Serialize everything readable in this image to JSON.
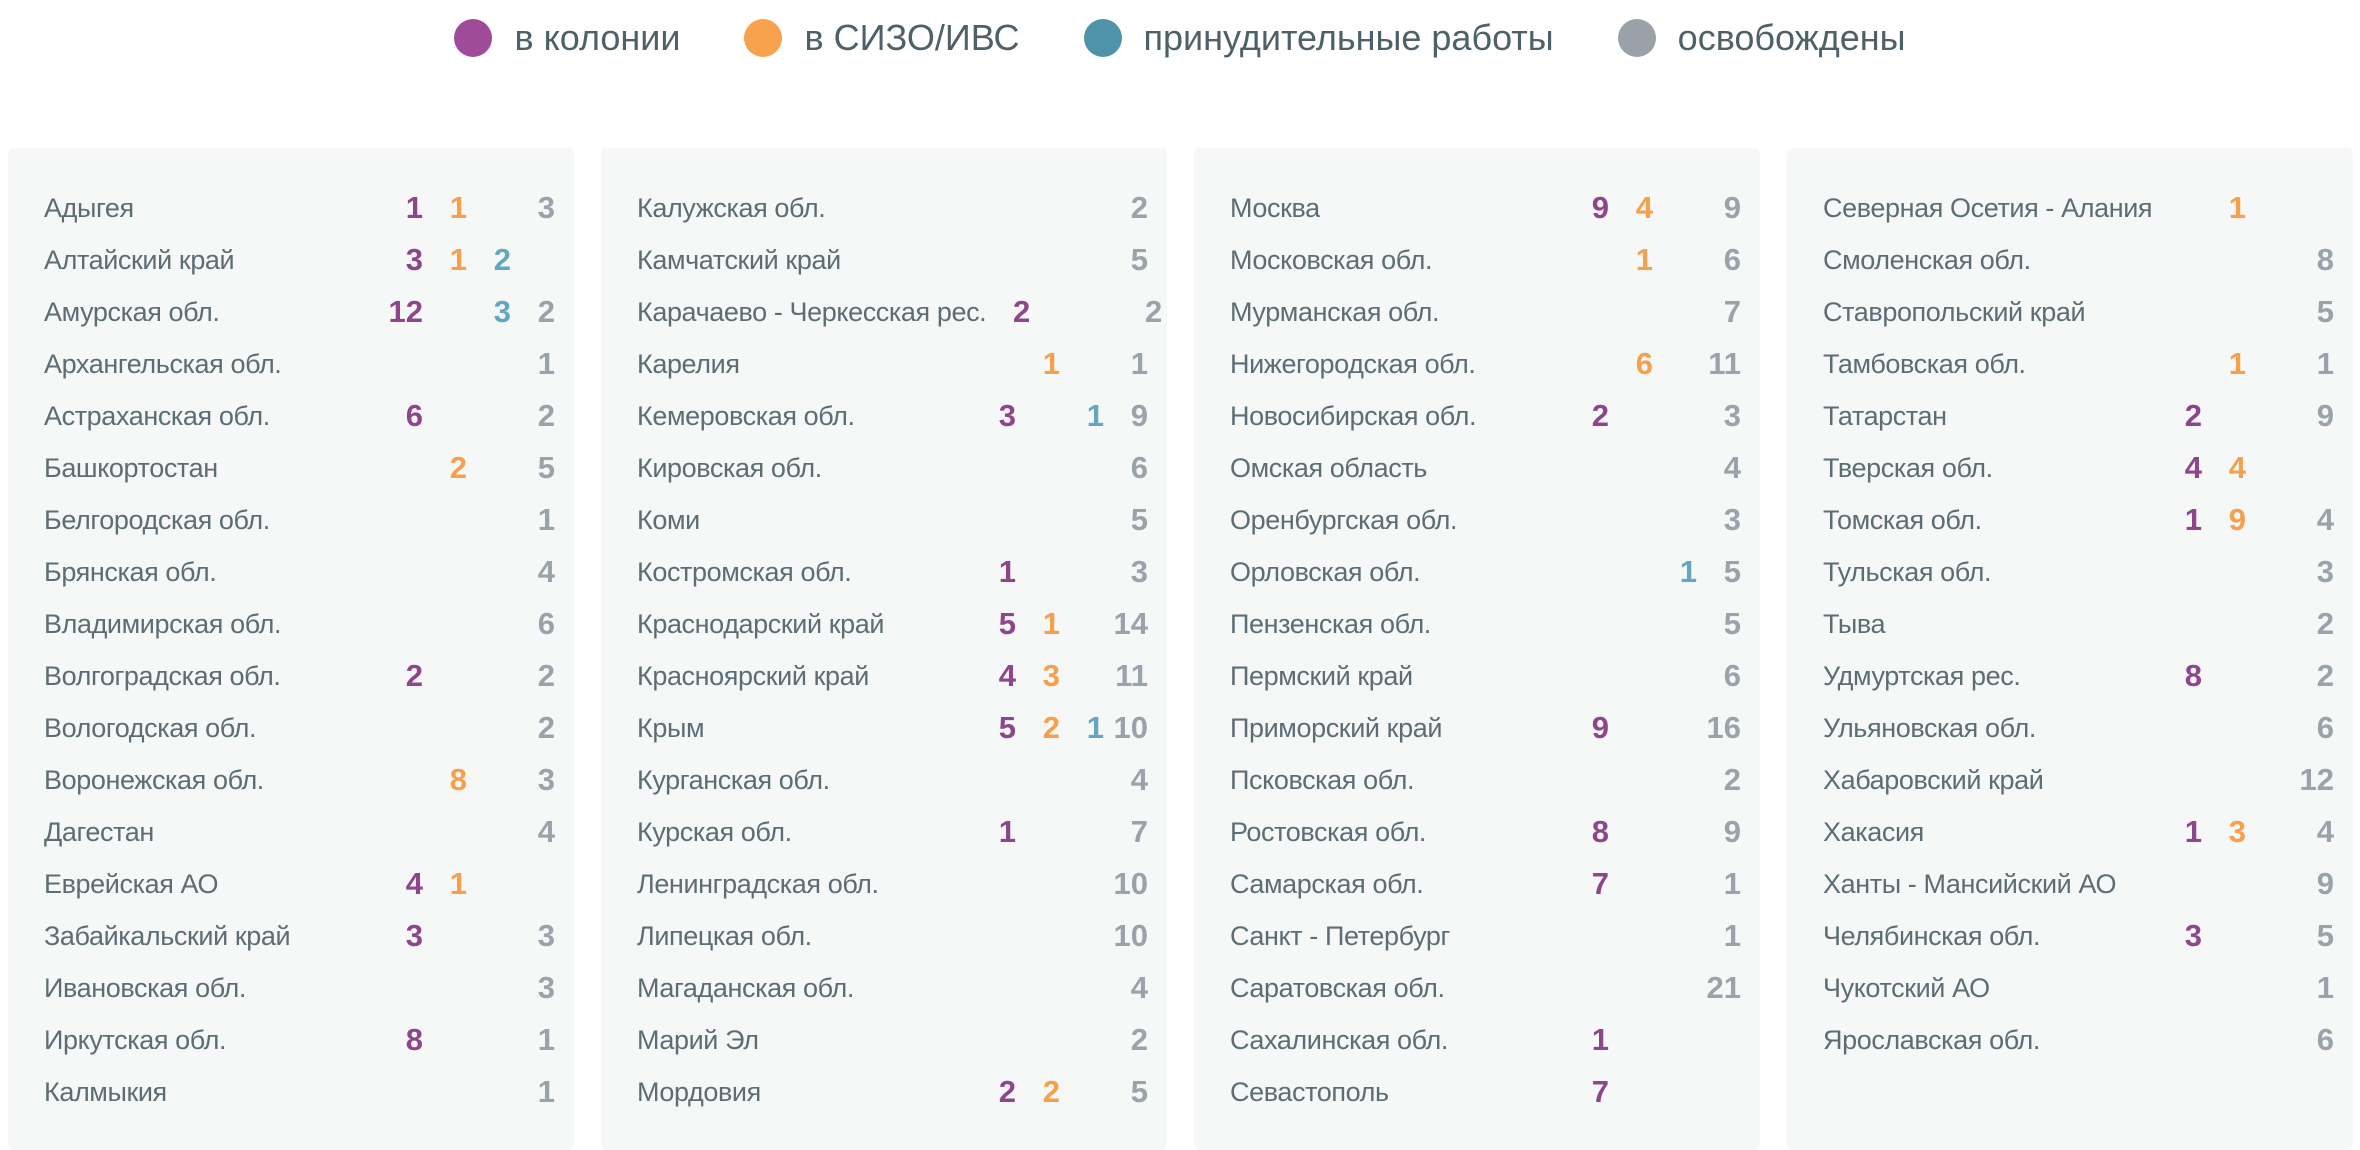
{
  "colors": {
    "page_bg": "#ffffff",
    "card_bg": "#f6f7f7",
    "label_text": "#5d6d74",
    "legend_text": "#4e6169",
    "numbers": {
      "colony": "#8f4589",
      "sizo": "#f6a04c",
      "forced": "#62a7bf",
      "released": "#9aa2ab"
    }
  },
  "chart_data": {
    "type": "table",
    "legend_position": "top-center",
    "legend": [
      {
        "key": "colony",
        "label": "в колонии",
        "color": "#a04a9a"
      },
      {
        "key": "sizo",
        "label": "в СИЗО/ИВС",
        "color": "#f9a24d"
      },
      {
        "key": "forced",
        "label": "принудительные работы",
        "color": "#4f93a8"
      },
      {
        "key": "released",
        "label": "освобождены",
        "color": "#9aa1a9"
      }
    ],
    "value_order": [
      "colony",
      "sizo",
      "forced",
      "released"
    ],
    "columns": [
      [
        {
          "region": "Адыгея",
          "colony": 1,
          "sizo": 1,
          "forced": null,
          "released": 3
        },
        {
          "region": "Алтайский край",
          "colony": 3,
          "sizo": 1,
          "forced": 2,
          "released": null
        },
        {
          "region": "Амурская обл.",
          "colony": 12,
          "sizo": null,
          "forced": 3,
          "released": 2
        },
        {
          "region": "Архангельская обл.",
          "colony": null,
          "sizo": null,
          "forced": null,
          "released": 1
        },
        {
          "region": "Астраханская обл.",
          "colony": 6,
          "sizo": null,
          "forced": null,
          "released": 2
        },
        {
          "region": "Башкортостан",
          "colony": null,
          "sizo": 2,
          "forced": null,
          "released": 5
        },
        {
          "region": "Белгородская обл.",
          "colony": null,
          "sizo": null,
          "forced": null,
          "released": 1
        },
        {
          "region": "Брянская обл.",
          "colony": null,
          "sizo": null,
          "forced": null,
          "released": 4
        },
        {
          "region": "Владимирская обл.",
          "colony": null,
          "sizo": null,
          "forced": null,
          "released": 6
        },
        {
          "region": "Волгоградская обл.",
          "colony": 2,
          "sizo": null,
          "forced": null,
          "released": 2
        },
        {
          "region": "Вологодская обл.",
          "colony": null,
          "sizo": null,
          "forced": null,
          "released": 2
        },
        {
          "region": "Воронежская обл.",
          "colony": null,
          "sizo": 8,
          "forced": null,
          "released": 3
        },
        {
          "region": "Дагестан",
          "colony": null,
          "sizo": null,
          "forced": null,
          "released": 4
        },
        {
          "region": "Еврейская АО",
          "colony": 4,
          "sizo": 1,
          "forced": null,
          "released": null
        },
        {
          "region": "Забайкальский край",
          "colony": 3,
          "sizo": null,
          "forced": null,
          "released": 3
        },
        {
          "region": "Ивановская обл.",
          "colony": null,
          "sizo": null,
          "forced": null,
          "released": 3
        },
        {
          "region": "Иркутская обл.",
          "colony": 8,
          "sizo": null,
          "forced": null,
          "released": 1
        },
        {
          "region": "Калмыкия",
          "colony": null,
          "sizo": null,
          "forced": null,
          "released": 1
        }
      ],
      [
        {
          "region": "Калужская обл.",
          "colony": null,
          "sizo": null,
          "forced": null,
          "released": 2
        },
        {
          "region": "Камчатский край",
          "colony": null,
          "sizo": null,
          "forced": null,
          "released": 5
        },
        {
          "region": "Карачаево - Черкесская рес.",
          "colony": 2,
          "sizo": null,
          "forced": null,
          "released": 2
        },
        {
          "region": "Карелия",
          "colony": null,
          "sizo": 1,
          "forced": null,
          "released": 1
        },
        {
          "region": "Кемеровская обл.",
          "colony": 3,
          "sizo": null,
          "forced": 1,
          "released": 9
        },
        {
          "region": "Кировская обл.",
          "colony": null,
          "sizo": null,
          "forced": null,
          "released": 6
        },
        {
          "region": "Коми",
          "colony": null,
          "sizo": null,
          "forced": null,
          "released": 5
        },
        {
          "region": "Костромская обл.",
          "colony": 1,
          "sizo": null,
          "forced": null,
          "released": 3
        },
        {
          "region": "Краснодарский край",
          "colony": 5,
          "sizo": 1,
          "forced": null,
          "released": 14
        },
        {
          "region": "Красноярский край",
          "colony": 4,
          "sizo": 3,
          "forced": null,
          "released": 11
        },
        {
          "region": "Крым",
          "colony": 5,
          "sizo": 2,
          "forced": 1,
          "released": 10
        },
        {
          "region": "Курганская обл.",
          "colony": null,
          "sizo": null,
          "forced": null,
          "released": 4
        },
        {
          "region": "Курская обл.",
          "colony": 1,
          "sizo": null,
          "forced": null,
          "released": 7
        },
        {
          "region": "Ленинградская обл.",
          "colony": null,
          "sizo": null,
          "forced": null,
          "released": 10
        },
        {
          "region": "Липецкая обл.",
          "colony": null,
          "sizo": null,
          "forced": null,
          "released": 10
        },
        {
          "region": "Магаданская обл.",
          "colony": null,
          "sizo": null,
          "forced": null,
          "released": 4
        },
        {
          "region": "Марий Эл",
          "colony": null,
          "sizo": null,
          "forced": null,
          "released": 2
        },
        {
          "region": "Мордовия",
          "colony": 2,
          "sizo": 2,
          "forced": null,
          "released": 5
        }
      ],
      [
        {
          "region": "Москва",
          "colony": 9,
          "sizo": 4,
          "forced": null,
          "released": 9
        },
        {
          "region": "Московская обл.",
          "colony": null,
          "sizo": 1,
          "forced": null,
          "released": 6
        },
        {
          "region": "Мурманская обл.",
          "colony": null,
          "sizo": null,
          "forced": null,
          "released": 7
        },
        {
          "region": "Нижегородская обл.",
          "colony": null,
          "sizo": 6,
          "forced": null,
          "released": 11
        },
        {
          "region": "Новосибирская обл.",
          "colony": 2,
          "sizo": null,
          "forced": null,
          "released": 3
        },
        {
          "region": "Омская область",
          "colony": null,
          "sizo": null,
          "forced": null,
          "released": 4
        },
        {
          "region": "Оренбургская обл.",
          "colony": null,
          "sizo": null,
          "forced": null,
          "released": 3
        },
        {
          "region": "Орловская обл.",
          "colony": null,
          "sizo": null,
          "forced": 1,
          "released": 5
        },
        {
          "region": "Пензенская обл.",
          "colony": null,
          "sizo": null,
          "forced": null,
          "released": 5
        },
        {
          "region": "Пермский край",
          "colony": null,
          "sizo": null,
          "forced": null,
          "released": 6
        },
        {
          "region": "Приморский край",
          "colony": 9,
          "sizo": null,
          "forced": null,
          "released": 16
        },
        {
          "region": "Псковская обл.",
          "colony": null,
          "sizo": null,
          "forced": null,
          "released": 2
        },
        {
          "region": "Ростовская обл.",
          "colony": 8,
          "sizo": null,
          "forced": null,
          "released": 9
        },
        {
          "region": "Самарская обл.",
          "colony": 7,
          "sizo": null,
          "forced": null,
          "released": 1
        },
        {
          "region": "Санкт - Петербург",
          "colony": null,
          "sizo": null,
          "forced": null,
          "released": 1
        },
        {
          "region": "Саратовская обл.",
          "colony": null,
          "sizo": null,
          "forced": null,
          "released": 21
        },
        {
          "region": "Сахалинская обл.",
          "colony": 1,
          "sizo": null,
          "forced": null,
          "released": null
        },
        {
          "region": "Севастополь",
          "colony": 7,
          "sizo": null,
          "forced": null,
          "released": null
        }
      ],
      [
        {
          "region": "Северная Осетия - Алания",
          "colony": null,
          "sizo": 1,
          "forced": null,
          "released": null
        },
        {
          "region": "Смоленская обл.",
          "colony": null,
          "sizo": null,
          "forced": null,
          "released": 8
        },
        {
          "region": "Ставропольский край",
          "colony": null,
          "sizo": null,
          "forced": null,
          "released": 5
        },
        {
          "region": "Тамбовская обл.",
          "colony": null,
          "sizo": 1,
          "forced": null,
          "released": 1
        },
        {
          "region": "Татарстан",
          "colony": 2,
          "sizo": null,
          "forced": null,
          "released": 9
        },
        {
          "region": "Тверская обл.",
          "colony": 4,
          "sizo": 4,
          "forced": null,
          "released": null
        },
        {
          "region": "Томская обл.",
          "colony": 1,
          "sizo": 9,
          "forced": null,
          "released": 4
        },
        {
          "region": "Тульская обл.",
          "colony": null,
          "sizo": null,
          "forced": null,
          "released": 3
        },
        {
          "region": "Тыва",
          "colony": null,
          "sizo": null,
          "forced": null,
          "released": 2
        },
        {
          "region": "Удмуртская рес.",
          "colony": 8,
          "sizo": null,
          "forced": null,
          "released": 2
        },
        {
          "region": "Ульяновская обл.",
          "colony": null,
          "sizo": null,
          "forced": null,
          "released": 6
        },
        {
          "region": "Хабаровский край",
          "colony": null,
          "sizo": null,
          "forced": null,
          "released": 12
        },
        {
          "region": "Хакасия",
          "colony": 1,
          "sizo": 3,
          "forced": null,
          "released": 4
        },
        {
          "region": "Ханты - Мансийский АО",
          "colony": null,
          "sizo": null,
          "forced": null,
          "released": 9
        },
        {
          "region": "Челябинская обл.",
          "colony": 3,
          "sizo": null,
          "forced": null,
          "released": 5
        },
        {
          "region": "Чукотский АО",
          "colony": null,
          "sizo": null,
          "forced": null,
          "released": 1
        },
        {
          "region": "Ярославская обл.",
          "colony": null,
          "sizo": null,
          "forced": null,
          "released": 6
        }
      ]
    ]
  }
}
